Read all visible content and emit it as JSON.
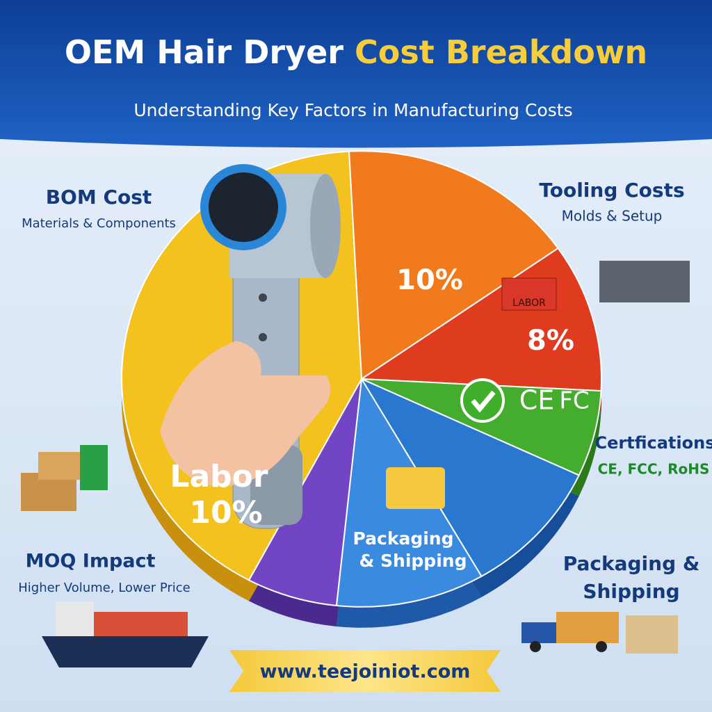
{
  "header": {
    "title_main": "OEM Hair Dryer",
    "title_highlight": "Cost Breakdown",
    "subtitle": "Understanding Key Factors in Manufacturing Costs"
  },
  "callouts": [
    {
      "title": "BOM Cost",
      "subtitle": "Materials & Components"
    },
    {
      "title": "Tooling Costs",
      "subtitle": "Molds & Setup"
    },
    {
      "title": "Certfications",
      "subtitle": "CE, FCC, RoHS"
    },
    {
      "title": "MOQ Impact",
      "subtitle": "Higher Volume, Lower Price"
    },
    {
      "title_lines": [
        "Packaging &",
        "Shipping"
      ]
    }
  ],
  "slices": {
    "orange": "10%",
    "red_tag": "LABOR",
    "red": "8%",
    "green_marks": [
      "CE",
      "FC"
    ],
    "yellow_lines": [
      "Labor",
      "10%"
    ],
    "blue_lines": [
      "Packaging",
      "& Shipping"
    ]
  },
  "footer": {
    "url": "www.teejoiniot.com"
  }
}
